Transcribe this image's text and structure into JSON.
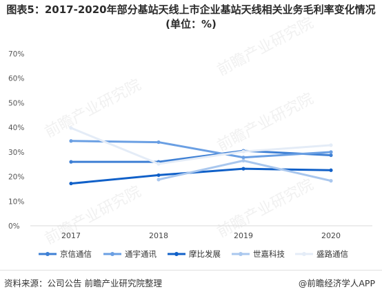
{
  "title": "图表5：2017-2020年部分基站天线上市企业基站天线相关业务毛利率变化情况(单位：%)",
  "watermark": "前瞻产业研究院",
  "footer": {
    "source": "资料来源：公司公告 前瞻产业研究院整理",
    "credit": "@前瞻经济学人APP"
  },
  "chart_data": {
    "type": "line",
    "title": "图表5：2017-2020年部分基站天线上市企业基站天线相关业务毛利率变化情况(单位：%)",
    "x": [
      "2017",
      "2018",
      "2019",
      "2020"
    ],
    "ylim": [
      0,
      70
    ],
    "yticks": [
      "0%",
      "10%",
      "20%",
      "30%",
      "40%",
      "50%",
      "60%",
      "70%"
    ],
    "legend_position": "bottom",
    "grid": false,
    "series": [
      {
        "name": "京信通信",
        "values": [
          26,
          26,
          30.5,
          28.7
        ],
        "color": "#3d7fd4"
      },
      {
        "name": "通宇通讯",
        "values": [
          34.5,
          34,
          27.8,
          30
        ],
        "color": "#6a9fe3"
      },
      {
        "name": "摩比发展",
        "values": [
          17.2,
          20.6,
          23.2,
          22.6
        ],
        "color": "#1060c8"
      },
      {
        "name": "世嘉科技",
        "values": [
          null,
          18.8,
          26.5,
          18.3
        ],
        "color": "#a9c7ee"
      },
      {
        "name": "盛路通信",
        "values": [
          39.8,
          25.2,
          30.2,
          32.8
        ],
        "color": "#e4ecf7"
      }
    ]
  }
}
